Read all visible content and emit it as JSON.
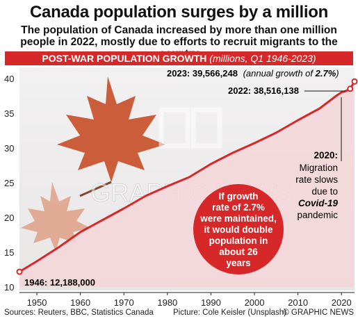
{
  "title": "Canada population surges by a million",
  "subtitle": "The population of Canada increased by more than one million people in 2022, mostly due to efforts to recruit migrants to the country",
  "banner": {
    "main": "POST-WAR POPULATION GROWTH",
    "sub": "(millions, Q1 1946-2023)"
  },
  "annotations": {
    "a2023": {
      "year_value": "2023: 39,566,248",
      "note": "(annual growth of ",
      "rate": "2.7%",
      "close": ")"
    },
    "a2022": "2022: 38,516,138",
    "a1946": "1946: 12,188,000",
    "a2020": {
      "head": "2020:",
      "l1": "Migration",
      "l2": "rate slows",
      "l3": "due to",
      "l4": "Covid-19",
      "l5": "pandemic"
    },
    "bubble": [
      "If growth",
      "rate of 2.7%",
      "were maintained,",
      "it would double",
      "population in",
      "about 26",
      "years"
    ]
  },
  "watermark": "GRAPHIC NEWS",
  "footer": {
    "sources": "Sources: Reuters, BBC, Statistics Canada",
    "picture": "Picture:  Cole Keisler (Unsplash)",
    "copyright": "© GRAPHIC NEWS"
  },
  "colors": {
    "accent": "#d62828",
    "fill": "#f4d6d8",
    "leaf": "#c9502a"
  },
  "chart_data": {
    "type": "area",
    "title": "POST-WAR POPULATION GROWTH",
    "subtitle": "(millions, Q1 1946-2023)",
    "xlim": [
      1946,
      2023
    ],
    "ylim": [
      10,
      40
    ],
    "yticks": [
      10,
      15,
      20,
      25,
      30,
      35,
      40
    ],
    "xticks": [
      1950,
      1960,
      1970,
      1980,
      1990,
      2000,
      2010,
      2020
    ],
    "series": [
      {
        "x": [
          1946,
          1950,
          1955,
          1960,
          1965,
          1970,
          1975,
          1980,
          1985,
          1990,
          1995,
          2000,
          2005,
          2010,
          2015,
          2019,
          2020,
          2021,
          2022,
          2023
        ],
        "values": [
          12.19,
          13.7,
          15.7,
          17.9,
          19.6,
          21.3,
          23.1,
          24.5,
          25.8,
          27.7,
          29.3,
          30.7,
          32.2,
          34.0,
          35.7,
          37.6,
          38.0,
          38.2,
          38.52,
          39.57
        ]
      }
    ]
  }
}
